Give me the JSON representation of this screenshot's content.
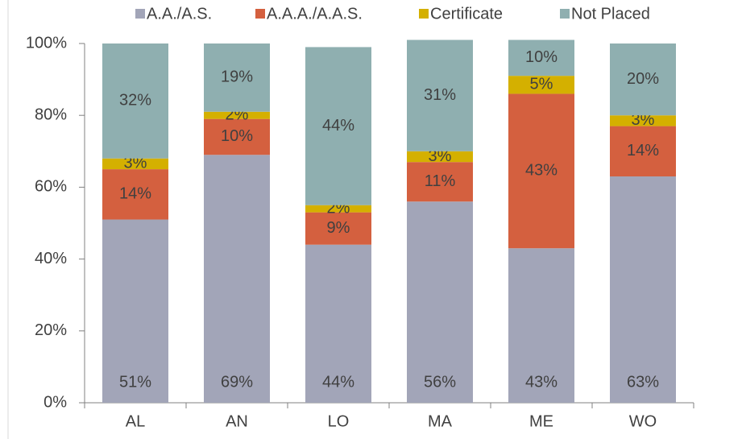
{
  "chart_data": {
    "type": "stacked_bar",
    "categories": [
      "AL",
      "AN",
      "LO",
      "MA",
      "ME",
      "WO"
    ],
    "series": [
      {
        "name": "A.A./A.S.",
        "color": "#a2a5b8",
        "values": [
          51,
          69,
          44,
          56,
          43,
          63
        ],
        "value_labels": [
          "51%",
          "69%",
          "44%",
          "56%",
          "43%",
          "63%"
        ]
      },
      {
        "name": "A.A.A./A.A.S.",
        "color": "#d4603f",
        "values": [
          14,
          10,
          9,
          11,
          43,
          14
        ],
        "value_labels": [
          "14%",
          "10%",
          "9%",
          "11%",
          "43%",
          "14%"
        ]
      },
      {
        "name": "Certificate",
        "color": "#d4b000",
        "values": [
          3,
          2,
          2,
          3,
          5,
          3
        ],
        "value_labels": [
          "3%",
          "2%",
          "2%",
          "3%",
          "5%",
          "3%"
        ]
      },
      {
        "name": "Not Placed",
        "color": "#8fafb0",
        "values": [
          32,
          19,
          44,
          31,
          10,
          20
        ],
        "value_labels": [
          "32%",
          "19%",
          "44%",
          "31%",
          "10%",
          "20%"
        ]
      }
    ],
    "ylim": [
      0,
      100
    ],
    "yticks": [
      {
        "value": 0,
        "label": "0%"
      },
      {
        "value": 20,
        "label": "20%"
      },
      {
        "value": 40,
        "label": "40%"
      },
      {
        "value": 60,
        "label": "60%"
      },
      {
        "value": 80,
        "label": "80%"
      },
      {
        "value": 100,
        "label": "100%"
      }
    ],
    "legend": "top"
  }
}
